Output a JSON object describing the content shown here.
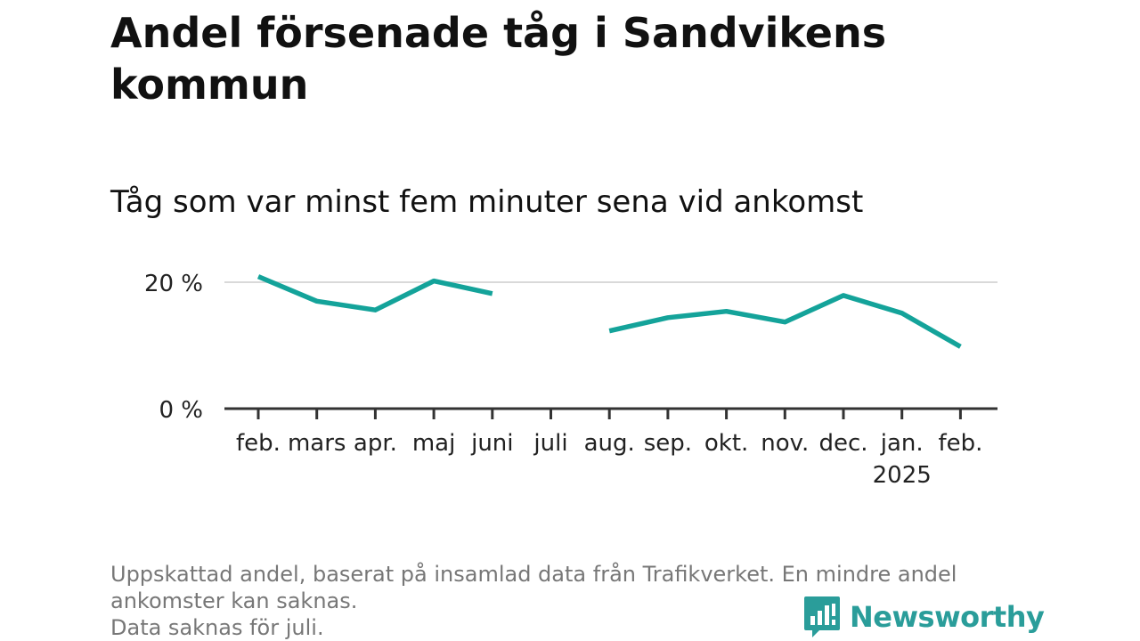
{
  "title": "Andel försenade tåg i Sandvikens kommun",
  "subtitle": "Tåg som var minst fem minuter sena vid ankomst",
  "footer": {
    "line1": "Uppskattad andel, baserat på insamlad data från Trafikverket. En mindre andel ankomster kan saknas.",
    "line2": "Data saknas för juli."
  },
  "brand": {
    "name": "Newsworthy",
    "icon": "newsworthy-logo-icon",
    "color": "#2a9d9a"
  },
  "chart_data": {
    "type": "line",
    "categories": [
      "feb.",
      "mars",
      "apr.",
      "maj",
      "juni",
      "juli",
      "aug.",
      "sep.",
      "okt.",
      "nov.",
      "dec.",
      "jan.",
      "feb."
    ],
    "category_sublabels": [
      "",
      "",
      "",
      "",
      "",
      "",
      "",
      "",
      "",
      "",
      "",
      "2025",
      ""
    ],
    "series": [
      {
        "values": [
          20.9,
          17.0,
          15.6,
          20.2,
          18.2,
          null,
          12.3,
          14.4,
          15.4,
          13.7,
          17.9,
          15.1,
          9.8
        ],
        "color": "#14a39a"
      }
    ],
    "yticks": [
      0,
      20
    ],
    "ytick_labels": [
      "0 %",
      "20 %"
    ],
    "ylim": [
      0,
      22
    ],
    "grid": true,
    "legend": "none"
  }
}
